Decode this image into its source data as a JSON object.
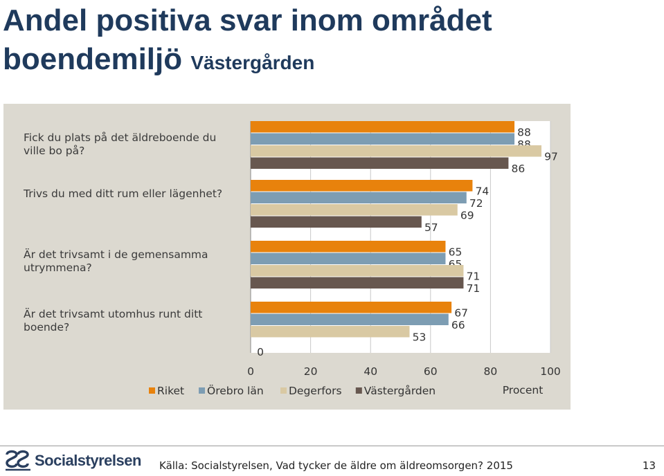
{
  "slide": {
    "title_main_line1": "Andel positiva svar inom området",
    "title_main_line2": "boendemiljö",
    "title_sub": "Västergården",
    "source": "Källa: Socialstyrelsen, Vad tycker de äldre om äldreomsorgen? 2015",
    "page_number": "13",
    "logo_text": "Socialstyrelsen"
  },
  "chart_data": {
    "type": "bar",
    "orientation": "horizontal",
    "categories": [
      "Fick du plats på det äldreboende du ville bo på?",
      "Trivs du med ditt rum eller lägenhet?",
      "Är det trivsamt i de gemensamma utrymmena?",
      "Är det trivsamt utomhus runt ditt boende?"
    ],
    "series": [
      {
        "name": "Riket",
        "color": "#e8820c",
        "values": [
          88,
          74,
          65,
          67
        ]
      },
      {
        "name": "Örebro län",
        "color": "#7d9db3",
        "values": [
          88,
          72,
          65,
          66
        ]
      },
      {
        "name": "Degerfors",
        "color": "#d9c9a3",
        "values": [
          97,
          69,
          71,
          53
        ]
      },
      {
        "name": "Västergården",
        "color": "#67574f",
        "values": [
          86,
          57,
          71,
          0
        ]
      }
    ],
    "value_labels": [
      [
        "88",
        "88",
        "97",
        "86"
      ],
      [
        "74",
        "72",
        "69",
        "57"
      ],
      [
        "65",
        "65",
        "71",
        "71"
      ],
      [
        "67",
        "66",
        "53",
        "0"
      ]
    ],
    "xlim": [
      0,
      100
    ],
    "xticks": [
      "0",
      "20",
      "40",
      "60",
      "80",
      "100"
    ],
    "xlabel": "Procent",
    "grid": true,
    "legend": "bottom"
  }
}
